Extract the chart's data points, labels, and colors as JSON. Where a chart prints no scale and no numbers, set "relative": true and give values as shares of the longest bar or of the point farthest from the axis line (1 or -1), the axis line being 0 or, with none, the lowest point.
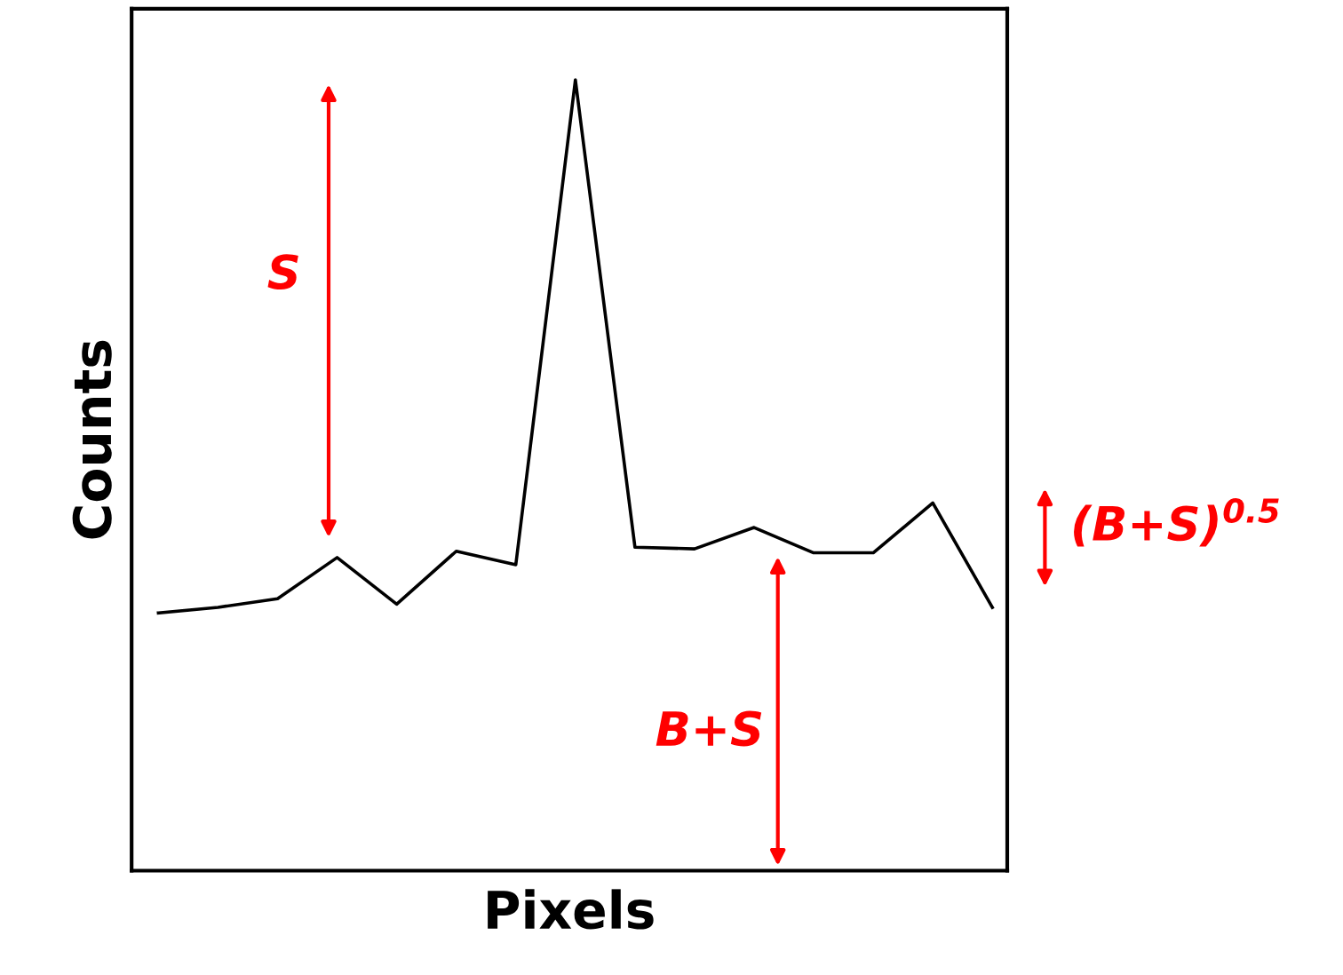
{
  "chart_data": {
    "type": "line",
    "relative": true,
    "xlabel": "Pixels",
    "ylabel": "Counts",
    "categories": [
      null,
      null,
      null,
      null,
      null,
      null,
      null,
      null,
      null,
      null,
      null,
      null,
      null,
      null,
      null
    ],
    "series": [
      {
        "color": "#000000",
        "values": [
          0.326,
          0.333,
          0.344,
          0.396,
          0.337,
          0.404,
          0.387,
          1,
          0.409,
          0.407,
          0.434,
          0.402,
          0.402,
          0.465,
          0.333
        ]
      }
    ],
    "annotations": [
      "S",
      "B+S",
      "(B+S)$^{0.5}$"
    ],
    "grid": false,
    "legend": false,
    "marker": "none",
    "line_style": "solid"
  }
}
